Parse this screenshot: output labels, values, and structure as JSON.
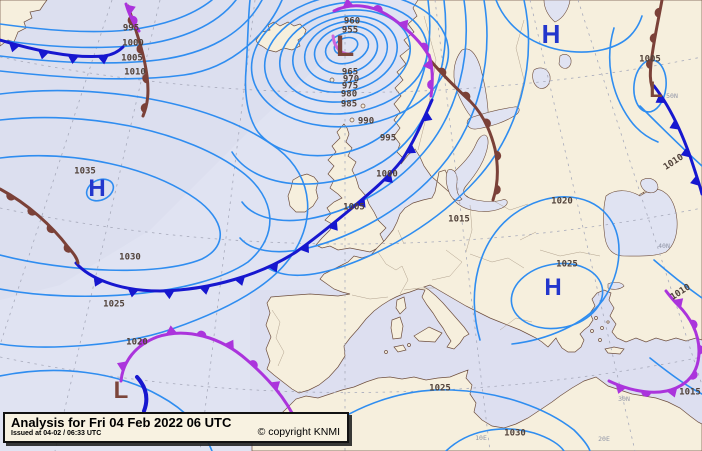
{
  "caption": {
    "title": "Analysis for Fri 04 Feb 2022 06 UTC",
    "issued": "Issued at 04-02 / 06:33 UTC",
    "copyright": "© copyright KNMI"
  },
  "pressure_centers": [
    {
      "symbol": "H",
      "name": "high-atlantic"
    },
    {
      "symbol": "H",
      "name": "high-northeast-russia"
    },
    {
      "symbol": "H",
      "name": "high-balkans"
    },
    {
      "symbol": "L",
      "name": "low-main-north-atlantic"
    },
    {
      "symbol": "L",
      "name": "low-southwest-atlantic"
    },
    {
      "symbol": "L",
      "name": "low-western-russia"
    }
  ],
  "isobar_labels": [
    {
      "text": "995"
    },
    {
      "text": "1000"
    },
    {
      "text": "1005"
    },
    {
      "text": "1010"
    },
    {
      "text": "960"
    },
    {
      "text": "955"
    },
    {
      "text": "965"
    },
    {
      "text": "970"
    },
    {
      "text": "975"
    },
    {
      "text": "980"
    },
    {
      "text": "985"
    },
    {
      "text": "990"
    },
    {
      "text": "995"
    },
    {
      "text": "1000"
    },
    {
      "text": "1005"
    },
    {
      "text": "1015"
    },
    {
      "text": "1035"
    },
    {
      "text": "1030"
    },
    {
      "text": "1025"
    },
    {
      "text": "1020"
    },
    {
      "text": "1020"
    },
    {
      "text": "1025"
    },
    {
      "text": "1005"
    },
    {
      "text": "1010"
    },
    {
      "text": "1010"
    },
    {
      "text": "1015"
    },
    {
      "text": "1025"
    },
    {
      "text": "1030"
    }
  ],
  "graticule_labels": [
    {
      "text": "50N"
    },
    {
      "text": "40N"
    },
    {
      "text": "30N"
    },
    {
      "text": "10E"
    },
    {
      "text": "20E"
    }
  ],
  "colors": {
    "sea": "#e0e3f2",
    "land": "#f6efdd",
    "isobar": "#2f8df0",
    "cold_front": "#1717cf",
    "warm_front": "#7b4138",
    "occluded_front": "#ab34dc",
    "high": "#2336cc",
    "low": "#7b453b"
  }
}
